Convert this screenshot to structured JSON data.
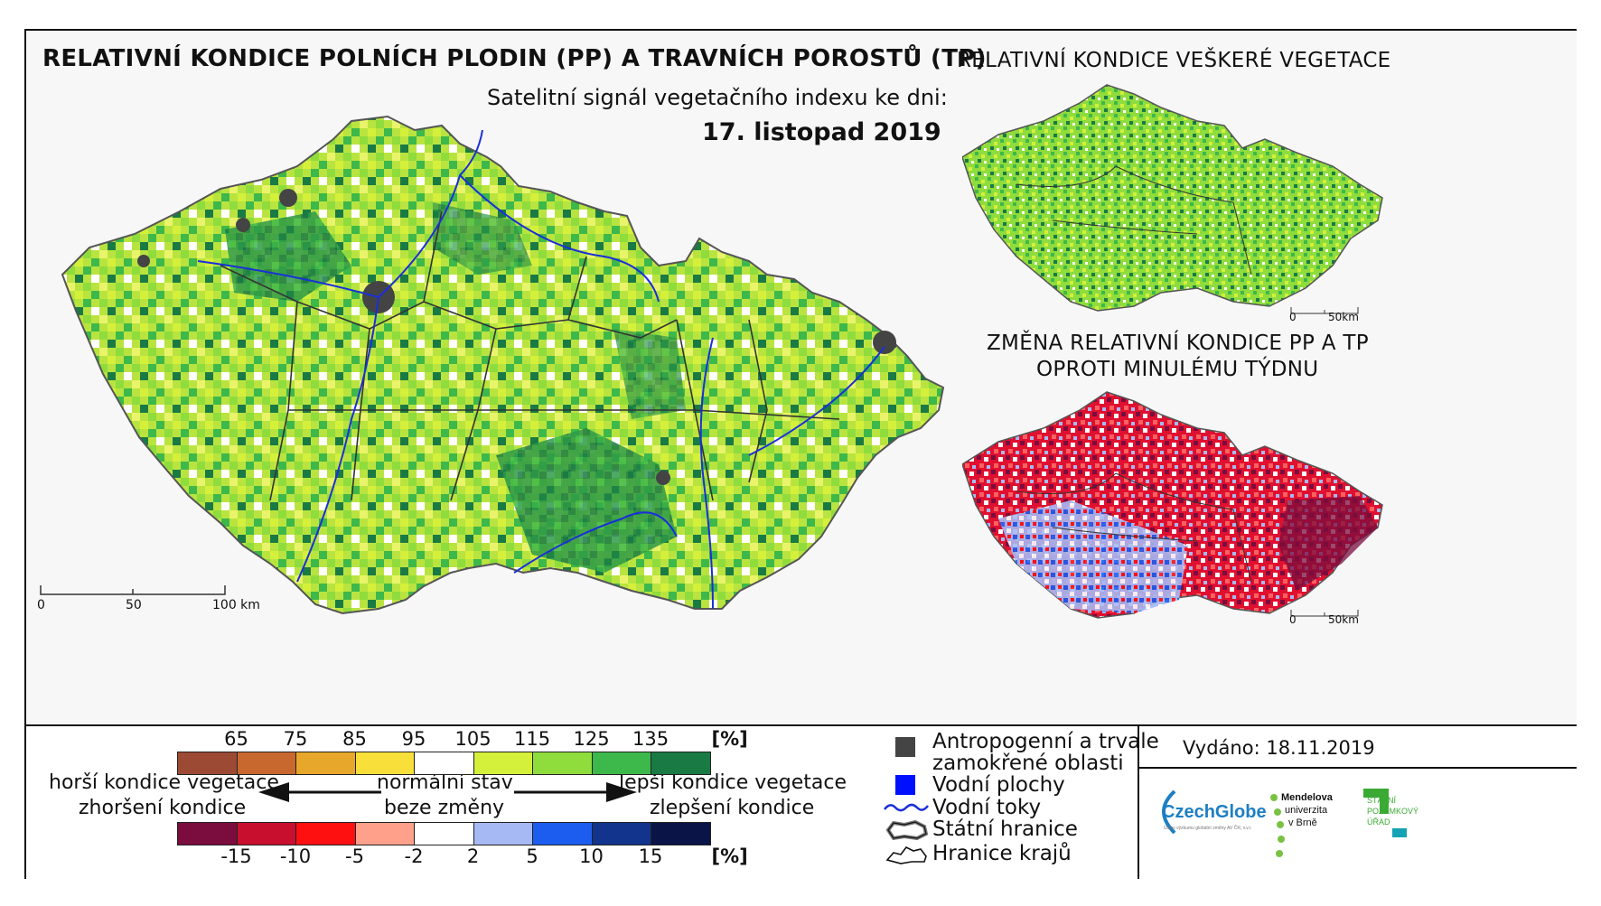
{
  "main_title": "RELATIVNÍ KONDICE POLNÍCH PLODIN (PP) A TRAVNÍCH POROSTŮ (TP)",
  "subtitle": "Satelitní signál vegetačního indexu ke dni:",
  "date": "17. listopad 2019",
  "side_title_top": "RELATIVNÍ KONDICE VEŠKERÉ VEGETACE",
  "side_title_bottom_1": "ZMĚNA RELATIVNÍ KONDICE PP A TP",
  "side_title_bottom_2": "OPROTI MINULÉMU TÝDNU",
  "main_scale": {
    "l0": "0",
    "l1": "50",
    "l2": "100 km"
  },
  "small_scale": {
    "l0": "0",
    "l1": "50km"
  },
  "legend": {
    "condition_ticks": [
      "65",
      "75",
      "85",
      "95",
      "105",
      "115",
      "125",
      "135",
      "[%]"
    ],
    "condition_colors": [
      "#9c4a34",
      "#c9682e",
      "#e7a72b",
      "#f8df3a",
      "#ffffff",
      "#d4f03a",
      "#8fdc3d",
      "#3db84a",
      "#1a7a44"
    ],
    "change_ticks": [
      "-15",
      "-10",
      "-5",
      "-2",
      "2",
      "5",
      "10",
      "15",
      "[%]"
    ],
    "change_colors": [
      "#7a0c3e",
      "#c8102e",
      "#ff1010",
      "#ffa08a",
      "#ffffff",
      "#a6b9f5",
      "#1c5df0",
      "#12348c",
      "#0a1446"
    ],
    "worse_1": "horší kondice vegetace",
    "worse_2": "zhoršení kondice",
    "normal_1": "normální stav",
    "normal_2": "beze změny",
    "better_1": "lepší kondice vegetace",
    "better_2": "zlepšení kondice",
    "anthropogenic_1": "Antropogenní a trvale",
    "anthropogenic_2": "zamokřené oblasti",
    "water_bodies": "Vodní plochy",
    "rivers": "Vodní toky",
    "state_border": "Státní hranice",
    "region_border": "Hranice krajů"
  },
  "issued": "Vydáno: 18.11.2019",
  "logos": {
    "czechglobe": "CzechGlobe",
    "czechglobe_sub": "Ústav výzkumu globální změny AV ČR, v.v.i.",
    "mendel_1": "Mendelova",
    "mendel_2": "univerzita",
    "mendel_3": "v Brně",
    "spu_1": "STÁTNÍ",
    "spu_2": "POZEMKOVÝ",
    "spu_3": "ÚŘAD"
  },
  "colors": {
    "anthropogenic": "#444444",
    "water": "#0010ff",
    "river": "#1a2fd8",
    "czechglobe_blue": "#1d7fc2",
    "mendel_green": "#7ac143",
    "spu_green": "#3aaa35",
    "spu_teal": "#13a3b5"
  }
}
